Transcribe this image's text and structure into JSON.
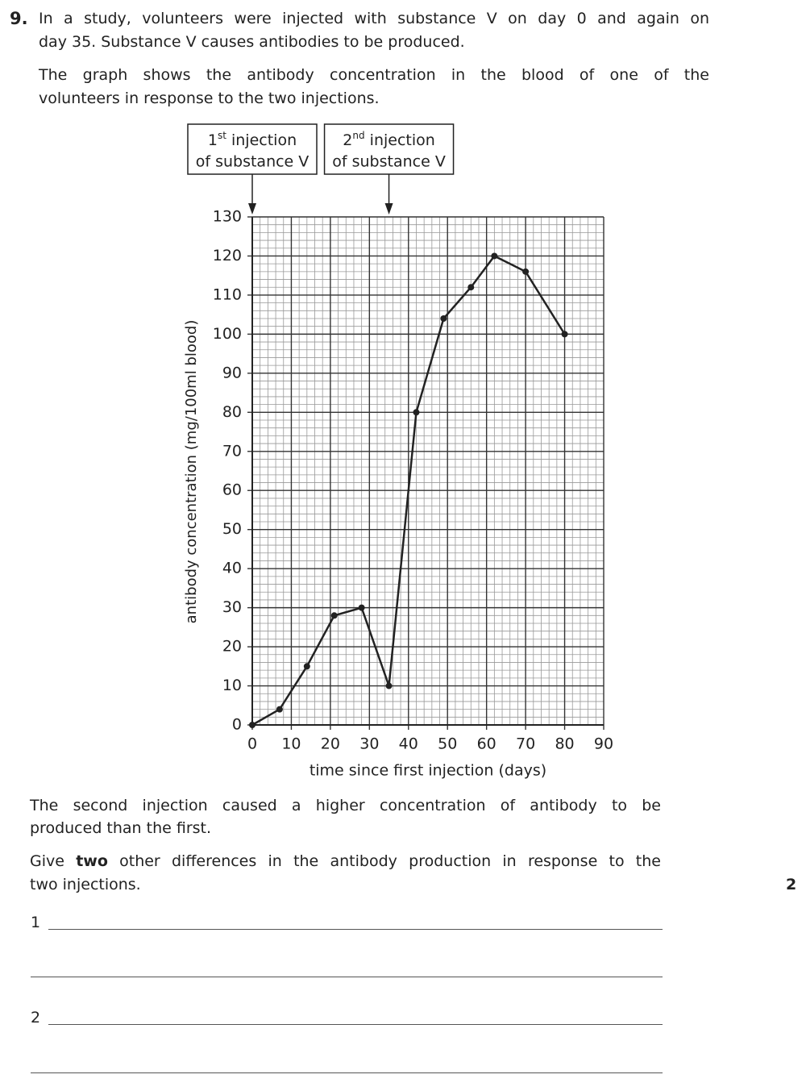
{
  "question": {
    "number": "9.",
    "intro": [
      "In a study, volunteers were injected with substance V on day 0 and again on",
      "day 35. Substance V causes antibodies to be produced."
    ],
    "graph_intro": [
      "The graph shows the antibody concentration in the blood of one of the",
      "volunteers in response to the two injections."
    ],
    "statement": [
      "The second injection caused a higher concentration of antibody to be",
      "produced than the first."
    ],
    "prompt": {
      "before": "Give ",
      "bold": "two",
      "after": " other differences in the antibody production in response to the",
      "line2": "two injections."
    },
    "marks": "2",
    "answer_labels": [
      "1",
      "2"
    ]
  },
  "chart_data": {
    "type": "line",
    "xlabel": "time since first injection (days)",
    "ylabel": "antibody concentration (mg/100ml blood)",
    "x": [
      0,
      7,
      14,
      21,
      28,
      35,
      42,
      49,
      56,
      62,
      70,
      80
    ],
    "series": [
      {
        "color": "#222222",
        "values": [
          0,
          4,
          15,
          28,
          30,
          10,
          80,
          104,
          112,
          120,
          116,
          100
        ]
      }
    ],
    "xlim": [
      0,
      90
    ],
    "ylim": [
      0,
      130
    ],
    "xticks": [
      0,
      10,
      20,
      30,
      40,
      50,
      60,
      70,
      80,
      90
    ],
    "yticks": [
      0,
      10,
      20,
      30,
      40,
      50,
      60,
      70,
      80,
      90,
      100,
      110,
      120,
      130
    ],
    "grid": true,
    "annotations": [
      {
        "x": 0,
        "base": "1",
        "sup": "st",
        "text": " injection",
        "line2": "of substance V"
      },
      {
        "x": 35,
        "base": "2",
        "sup": "nd",
        "text": " injection",
        "line2": "of substance V"
      }
    ]
  }
}
